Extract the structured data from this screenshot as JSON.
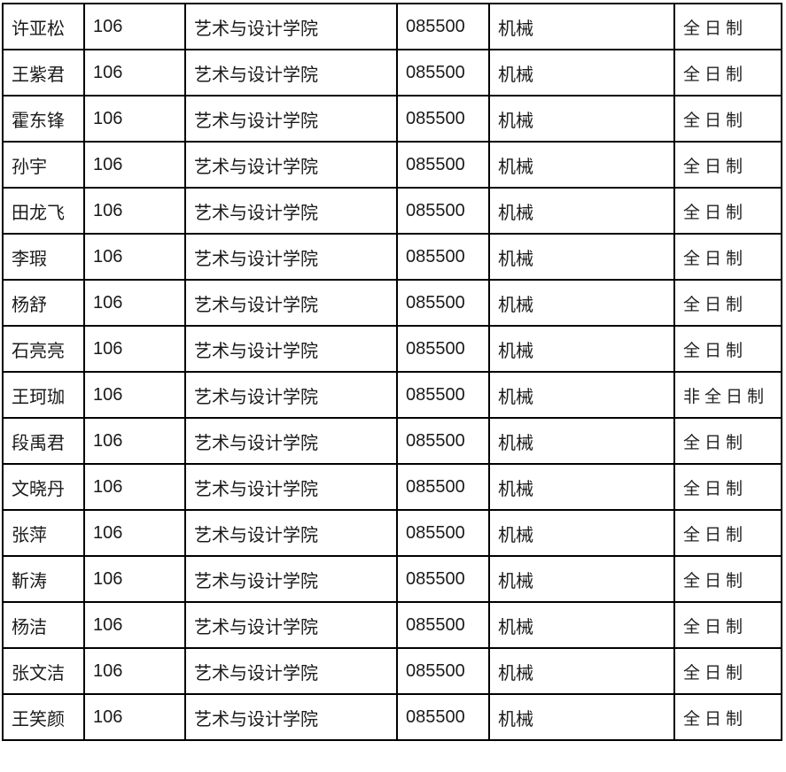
{
  "colors": {
    "background": "#ffffff",
    "border": "#000000",
    "text": "#1a1a1a"
  },
  "table": {
    "rows": [
      [
        "许亚松",
        "106",
        "艺术与设计学院",
        "085500",
        "机械",
        "全日制"
      ],
      [
        "王紫君",
        "106",
        "艺术与设计学院",
        "085500",
        "机械",
        "全日制"
      ],
      [
        "霍东锋",
        "106",
        "艺术与设计学院",
        "085500",
        "机械",
        "全日制"
      ],
      [
        "孙宇",
        "106",
        "艺术与设计学院",
        "085500",
        "机械",
        "全日制"
      ],
      [
        "田龙飞",
        "106",
        "艺术与设计学院",
        "085500",
        "机械",
        "全日制"
      ],
      [
        "李瑕",
        "106",
        "艺术与设计学院",
        "085500",
        "机械",
        "全日制"
      ],
      [
        "杨舒",
        "106",
        "艺术与设计学院",
        "085500",
        "机械",
        "全日制"
      ],
      [
        "石亮亮",
        "106",
        "艺术与设计学院",
        "085500",
        "机械",
        "全日制"
      ],
      [
        "王珂珈",
        "106",
        "艺术与设计学院",
        "085500",
        "机械",
        "非全日制"
      ],
      [
        "段禹君",
        "106",
        "艺术与设计学院",
        "085500",
        "机械",
        "全日制"
      ],
      [
        "文晓丹",
        "106",
        "艺术与设计学院",
        "085500",
        "机械",
        "全日制"
      ],
      [
        "张萍",
        "106",
        "艺术与设计学院",
        "085500",
        "机械",
        "全日制"
      ],
      [
        "靳涛",
        "106",
        "艺术与设计学院",
        "085500",
        "机械",
        "全日制"
      ],
      [
        "杨洁",
        "106",
        "艺术与设计学院",
        "085500",
        "机械",
        "全日制"
      ],
      [
        "张文洁",
        "106",
        "艺术与设计学院",
        "085500",
        "机械",
        "全日制"
      ],
      [
        "王笑颜",
        "106",
        "艺术与设计学院",
        "085500",
        "机械",
        "全日制"
      ]
    ]
  }
}
